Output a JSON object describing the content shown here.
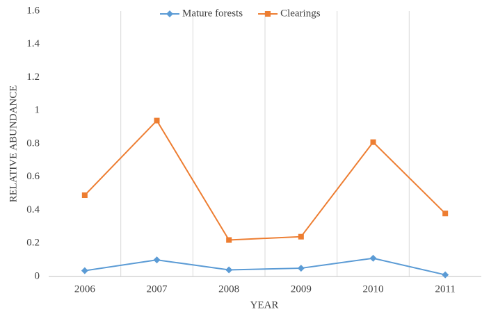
{
  "chart_data": {
    "type": "line",
    "categories": [
      "2006",
      "2007",
      "2008",
      "2009",
      "2010",
      "2011"
    ],
    "series": [
      {
        "name": "Mature forests",
        "color": "#5b9bd5",
        "marker": "diamond",
        "values": [
          0.035,
          0.1,
          0.04,
          0.05,
          0.11,
          0.01
        ]
      },
      {
        "name": "Clearings",
        "color": "#ed7d31",
        "marker": "square",
        "values": [
          0.49,
          0.94,
          0.22,
          0.24,
          0.81,
          0.38
        ]
      }
    ],
    "ylim": [
      0,
      1.6
    ],
    "yticks": [
      0,
      0.2,
      0.4,
      0.6,
      0.8,
      1,
      1.2,
      1.4,
      1.6
    ],
    "xlabel": "YEAR",
    "ylabel": "RELATIVE ABUNDANCE",
    "legend": "top"
  }
}
